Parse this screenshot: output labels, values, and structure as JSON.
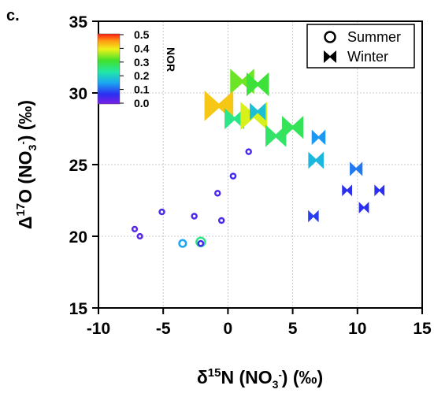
{
  "chart_data": {
    "type": "scatter",
    "panel_label": "c.",
    "xlabel": {
      "base": "δ",
      "sup": "15",
      "mid": "N (NO",
      "sub": "3",
      "supm": "-",
      "end": ") (‰)"
    },
    "ylabel": {
      "base": "Δ",
      "sup": "17",
      "mid": "O (NO",
      "sub": "3",
      "supm": "-",
      "end": ") (‰)"
    },
    "xlim": [
      -10,
      15
    ],
    "ylim": [
      15,
      35
    ],
    "x_ticks": [
      -10,
      -5,
      0,
      5,
      10,
      15
    ],
    "y_ticks": [
      15,
      20,
      25,
      30,
      35
    ],
    "x_tick_labels": [
      "-10",
      "-5",
      "0",
      "5",
      "10",
      "15"
    ],
    "y_tick_labels": [
      "15",
      "20",
      "25",
      "30",
      "35"
    ],
    "grid": true,
    "colorbar": {
      "title": "NOR",
      "range": [
        0.0,
        0.5
      ],
      "ticks": [
        0.5,
        0.4,
        0.3,
        0.2,
        0.1,
        0.0
      ],
      "tick_labels": [
        "0.5",
        "0.4",
        "0.3",
        "0.2",
        "0.1",
        "0.0"
      ]
    },
    "legend": {
      "position": "top-right",
      "entries": [
        {
          "label": "Summer",
          "marker": "circle"
        },
        {
          "label": "Winter",
          "marker": "bowtie"
        }
      ]
    },
    "series": [
      {
        "name": "Summer",
        "marker": "circle",
        "points": [
          {
            "x": -7.2,
            "y": 20.5,
            "nor": 0.03
          },
          {
            "x": -6.8,
            "y": 20.0,
            "nor": 0.03
          },
          {
            "x": -5.1,
            "y": 21.7,
            "nor": 0.04
          },
          {
            "x": -2.6,
            "y": 21.4,
            "nor": 0.04
          },
          {
            "x": -0.8,
            "y": 23.0,
            "nor": 0.04
          },
          {
            "x": -0.5,
            "y": 21.1,
            "nor": 0.04
          },
          {
            "x": 0.4,
            "y": 24.2,
            "nor": 0.05
          },
          {
            "x": 1.6,
            "y": 25.9,
            "nor": 0.04
          },
          {
            "x": -3.5,
            "y": 19.5,
            "nor": 0.15
          },
          {
            "x": -2.1,
            "y": 19.6,
            "nor": 0.25
          },
          {
            "x": -2.1,
            "y": 19.5,
            "nor": 0.05
          }
        ]
      },
      {
        "name": "Winter",
        "marker": "bowtie",
        "points": [
          {
            "x": 1.1,
            "y": 30.8,
            "nor": 0.33
          },
          {
            "x": 2.3,
            "y": 30.6,
            "nor": 0.3
          },
          {
            "x": -0.7,
            "y": 29.1,
            "nor": 0.42
          },
          {
            "x": 0.5,
            "y": 28.2,
            "nor": 0.25
          },
          {
            "x": 2.0,
            "y": 28.4,
            "nor": 0.38
          },
          {
            "x": 2.3,
            "y": 28.7,
            "nor": 0.18
          },
          {
            "x": 3.7,
            "y": 27.0,
            "nor": 0.27
          },
          {
            "x": 5.0,
            "y": 27.6,
            "nor": 0.28
          },
          {
            "x": 7.0,
            "y": 26.9,
            "nor": 0.14
          },
          {
            "x": 6.8,
            "y": 25.3,
            "nor": 0.17
          },
          {
            "x": 9.9,
            "y": 24.7,
            "nor": 0.12
          },
          {
            "x": 9.2,
            "y": 23.2,
            "nor": 0.07
          },
          {
            "x": 11.7,
            "y": 23.2,
            "nor": 0.07
          },
          {
            "x": 6.6,
            "y": 21.4,
            "nor": 0.08
          },
          {
            "x": 10.5,
            "y": 22.0,
            "nor": 0.07
          }
        ]
      }
    ]
  }
}
